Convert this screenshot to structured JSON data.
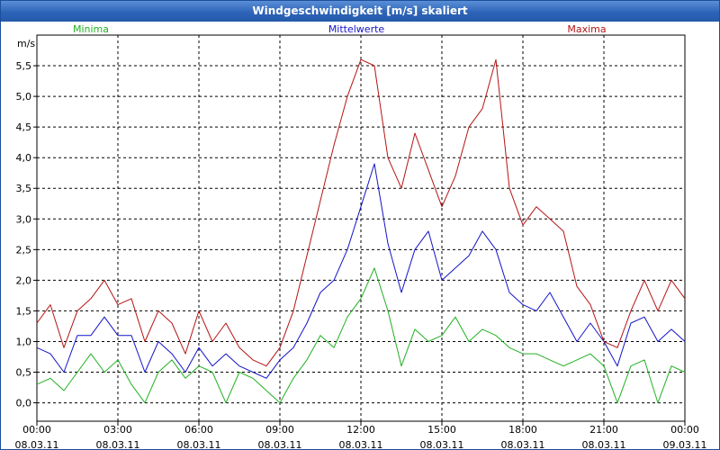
{
  "window": {
    "title": "Windgeschwindigkeit [m/s] skaliert"
  },
  "chart_data": {
    "type": "line",
    "title": "Windgeschwindigkeit [m/s] skaliert",
    "ylabel": "m/s",
    "xlabel": "",
    "ylim": [
      -0.3,
      6.0
    ],
    "xlim": [
      0,
      24
    ],
    "grid": true,
    "y_ticks": [
      "0,0",
      "0,5",
      "1,0",
      "1,5",
      "2,0",
      "2,5",
      "3,0",
      "3,5",
      "4,0",
      "4,5",
      "5,0",
      "5,5"
    ],
    "x_ticks": [
      {
        "time": "00:00",
        "date": "08.03.11"
      },
      {
        "time": "03:00",
        "date": "08.03.11"
      },
      {
        "time": "06:00",
        "date": "08.03.11"
      },
      {
        "time": "09:00",
        "date": "08.03.11"
      },
      {
        "time": "12:00",
        "date": "08.03.11"
      },
      {
        "time": "15:00",
        "date": "08.03.11"
      },
      {
        "time": "18:00",
        "date": "08.03.11"
      },
      {
        "time": "21:00",
        "date": "08.03.11"
      },
      {
        "time": "00:00",
        "date": "09.03.11"
      }
    ],
    "x_hours": [
      0,
      0.5,
      1,
      1.5,
      2,
      2.5,
      3,
      3.5,
      4,
      4.5,
      5,
      5.5,
      6,
      6.5,
      7,
      7.5,
      8,
      8.5,
      9,
      9.5,
      10,
      10.5,
      11,
      11.5,
      12,
      12.5,
      13,
      13.5,
      14,
      14.5,
      15,
      15.5,
      16,
      16.5,
      17,
      17.5,
      18,
      18.5,
      19,
      19.5,
      20,
      20.5,
      21,
      21.5,
      22,
      22.5,
      23,
      23.5,
      24
    ],
    "series": [
      {
        "name": "Minima",
        "color": "#22b022",
        "values": [
          0.3,
          0.4,
          0.2,
          0.5,
          0.8,
          0.5,
          0.7,
          0.3,
          0.0,
          0.5,
          0.7,
          0.4,
          0.6,
          0.5,
          0.0,
          0.5,
          0.4,
          0.2,
          0.0,
          0.4,
          0.7,
          1.1,
          0.9,
          1.4,
          1.7,
          2.2,
          1.5,
          0.6,
          1.2,
          1.0,
          1.1,
          1.4,
          1.0,
          1.2,
          1.1,
          0.9,
          0.8,
          0.8,
          0.7,
          0.6,
          0.7,
          0.8,
          0.6,
          0.0,
          0.6,
          0.7,
          0.0,
          0.6,
          0.5
        ]
      },
      {
        "name": "Mittelwerte",
        "color": "#1414c8",
        "values": [
          0.9,
          0.8,
          0.5,
          1.1,
          1.1,
          1.4,
          1.1,
          1.1,
          0.5,
          1.0,
          0.8,
          0.5,
          0.9,
          0.6,
          0.8,
          0.6,
          0.5,
          0.4,
          0.7,
          0.9,
          1.3,
          1.8,
          2.0,
          2.5,
          3.2,
          3.9,
          2.6,
          1.8,
          2.5,
          2.8,
          2.0,
          2.2,
          2.4,
          2.8,
          2.5,
          1.8,
          1.6,
          1.5,
          1.8,
          1.4,
          1.0,
          1.3,
          1.0,
          0.6,
          1.3,
          1.4,
          1.0,
          1.2,
          1.0
        ]
      },
      {
        "name": "Maxima",
        "color": "#b41414",
        "values": [
          1.3,
          1.6,
          0.9,
          1.5,
          1.7,
          2.0,
          1.6,
          1.7,
          1.0,
          1.5,
          1.3,
          0.8,
          1.5,
          1.0,
          1.3,
          0.9,
          0.7,
          0.6,
          0.9,
          1.5,
          2.4,
          3.3,
          4.2,
          5.0,
          5.6,
          5.5,
          4.0,
          3.5,
          4.4,
          3.8,
          3.2,
          3.7,
          4.5,
          4.8,
          5.6,
          3.5,
          2.9,
          3.2,
          3.0,
          2.8,
          1.9,
          1.6,
          1.0,
          0.9,
          1.5,
          2.0,
          1.5,
          2.0,
          1.7
        ]
      }
    ]
  }
}
